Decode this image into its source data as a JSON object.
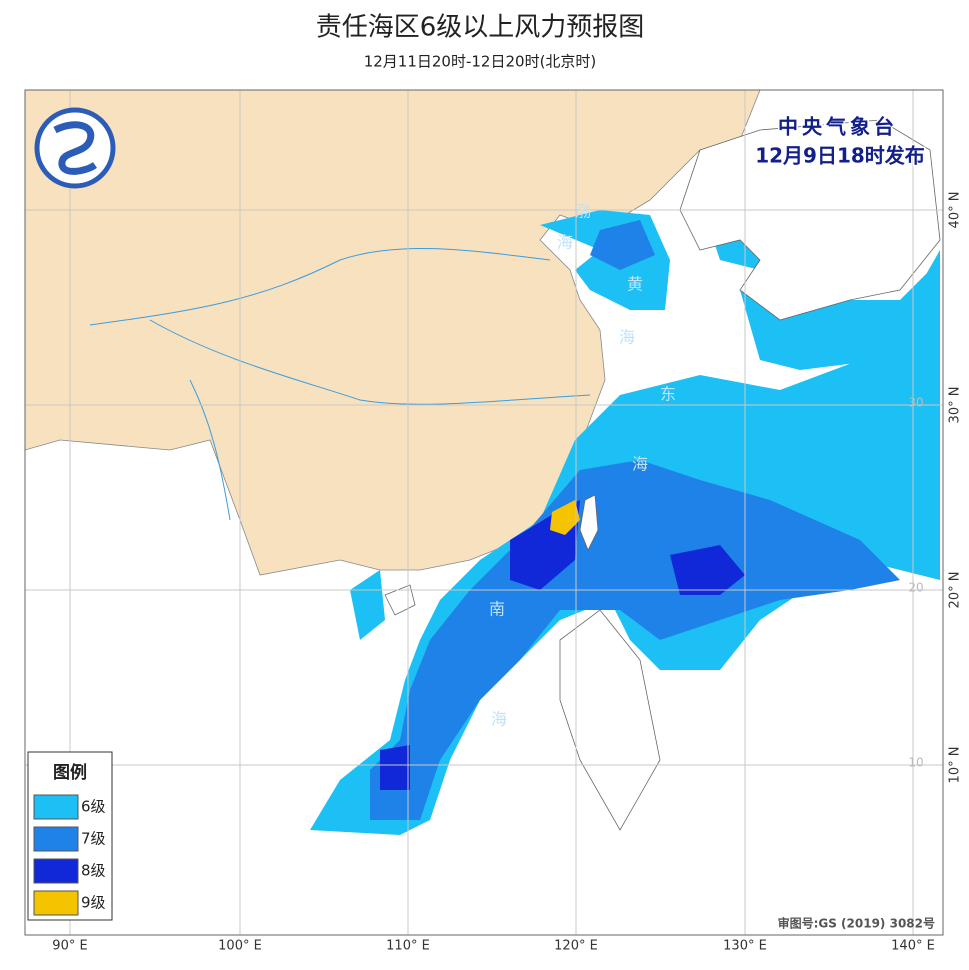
{
  "header": {
    "title": "责任海区6级以上风力预报图",
    "subtitle": "12月11日20时-12日20时(北京时)"
  },
  "issuer": {
    "name": "中央气象台",
    "time": "12月9日18时发布"
  },
  "legend": {
    "title": "图例",
    "items": [
      "6级",
      "7级",
      "8级",
      "9级"
    ]
  },
  "axes": {
    "lon_labels": [
      "90° E",
      "100° E",
      "110° E",
      "120° E",
      "130° E",
      "140° E"
    ],
    "lat_labels": [
      "40° N",
      "30° N",
      "20° N",
      "10° N"
    ],
    "inner_lat_labels": [
      "30",
      "20",
      "10"
    ]
  },
  "sea_labels": [
    "渤",
    "海",
    "黄",
    "海",
    "东",
    "海",
    "南",
    "海"
  ],
  "review_number": "审图号:GS (2019) 3082号"
}
